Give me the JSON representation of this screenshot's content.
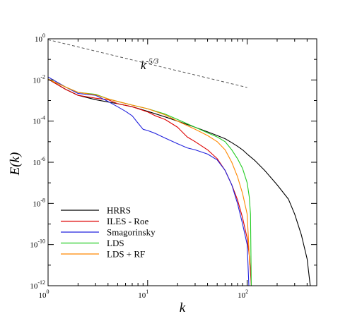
{
  "chart_data": {
    "type": "line",
    "title": "",
    "xlabel": "k",
    "ylabel": "E(k)",
    "x_scale": "log",
    "y_scale": "log",
    "xlim": [
      1,
      500
    ],
    "ylim": [
      1e-12,
      1
    ],
    "x_ticks": [
      {
        "value": 1,
        "base": "10",
        "exp": "0"
      },
      {
        "value": 10,
        "base": "10",
        "exp": "1"
      },
      {
        "value": 100,
        "base": "10",
        "exp": "2"
      }
    ],
    "y_ticks": [
      {
        "value": 1,
        "base": "10",
        "exp": "0"
      },
      {
        "value": 0.01,
        "base": "10",
        "exp": "-2"
      },
      {
        "value": 0.0001,
        "base": "10",
        "exp": "-4"
      },
      {
        "value": 1e-06,
        "base": "10",
        "exp": "-6"
      },
      {
        "value": 1e-08,
        "base": "10",
        "exp": "-8"
      },
      {
        "value": 1e-10,
        "base": "10",
        "exp": "-10"
      },
      {
        "value": 1e-12,
        "base": "10",
        "exp": "-12"
      }
    ],
    "grid": false,
    "legend_position": "bottom-left",
    "annotation": {
      "base": "k",
      "exp": "-5/3"
    },
    "reference_line": {
      "style": "dashed",
      "color": "#555555",
      "x": [
        1,
        100
      ],
      "y": [
        0.9,
        0.0043
      ]
    },
    "series": [
      {
        "name": "HRRS",
        "color": "#000000",
        "x": [
          1,
          1.5,
          2,
          3,
          4,
          5,
          7,
          10,
          15,
          20,
          30,
          40,
          50,
          60,
          70,
          80,
          90,
          100,
          120,
          150,
          200,
          260,
          300,
          350,
          400,
          430
        ],
        "y": [
          0.011,
          0.0035,
          0.0018,
          0.0011,
          0.00085,
          0.0007,
          0.0005,
          0.0003,
          0.00016,
          0.0001,
          5e-05,
          3e-05,
          2e-05,
          1.4e-05,
          9e-06,
          6e-06,
          4e-06,
          2.5e-06,
          1.2e-06,
          4e-07,
          8e-08,
          1.6e-08,
          3e-09,
          3e-10,
          2e-11,
          1e-12
        ]
      },
      {
        "name": "ILES - Roe",
        "color": "#dd0000",
        "x": [
          1,
          1.5,
          2,
          3,
          4,
          5,
          7,
          10,
          12,
          15,
          20,
          25,
          30,
          40,
          50,
          60,
          70,
          80,
          90,
          100,
          106,
          110
        ],
        "y": [
          0.011,
          0.0035,
          0.0018,
          0.0013,
          0.0011,
          0.0007,
          0.0005,
          0.00028,
          0.00018,
          0.00012,
          5e-05,
          1.7e-05,
          1e-05,
          4e-06,
          1.5e-06,
          4e-07,
          8e-08,
          1.5e-08,
          2e-09,
          2e-10,
          2e-11,
          1e-12
        ]
      },
      {
        "name": "Smagorinsky",
        "color": "#2222dd",
        "x": [
          1,
          1.5,
          2,
          3,
          4,
          5,
          6,
          7,
          8,
          9,
          10,
          12,
          15,
          20,
          25,
          30,
          40,
          50,
          60,
          70,
          80,
          90,
          100,
          104
        ],
        "y": [
          0.014,
          0.0045,
          0.0022,
          0.0018,
          0.0009,
          0.0005,
          0.0003,
          0.00018,
          8e-05,
          4e-05,
          3.5e-05,
          2.5e-05,
          1.5e-05,
          8e-06,
          5e-06,
          4e-06,
          2.5e-06,
          1.3e-06,
          4e-07,
          8e-08,
          1e-08,
          1e-09,
          1e-10,
          1e-12
        ]
      },
      {
        "name": "LDS",
        "color": "#22cc22",
        "x": [
          1,
          1.5,
          2,
          3,
          4,
          5,
          7,
          10,
          15,
          20,
          30,
          40,
          50,
          60,
          70,
          80,
          90,
          100,
          105,
          108,
          110
        ],
        "y": [
          0.011,
          0.0045,
          0.0025,
          0.002,
          0.0012,
          0.0009,
          0.0006,
          0.0004,
          0.00022,
          0.00012,
          5e-05,
          2.7e-05,
          1.7e-05,
          1e-05,
          4e-06,
          1.5e-06,
          5e-07,
          1e-07,
          2e-08,
          3e-09,
          1e-12
        ]
      },
      {
        "name": "LDS + RF",
        "color": "#ff8800",
        "x": [
          1,
          1.5,
          2,
          3,
          4,
          5,
          7,
          10,
          15,
          20,
          30,
          40,
          50,
          60,
          70,
          80,
          90,
          100,
          106
        ],
        "y": [
          0.011,
          0.0045,
          0.0025,
          0.0019,
          0.0012,
          0.0009,
          0.0006,
          0.0004,
          0.0002,
          0.0001,
          4e-05,
          2e-05,
          1e-05,
          4e-06,
          1e-06,
          2e-07,
          3e-08,
          3e-09,
          1e-11
        ]
      }
    ]
  }
}
